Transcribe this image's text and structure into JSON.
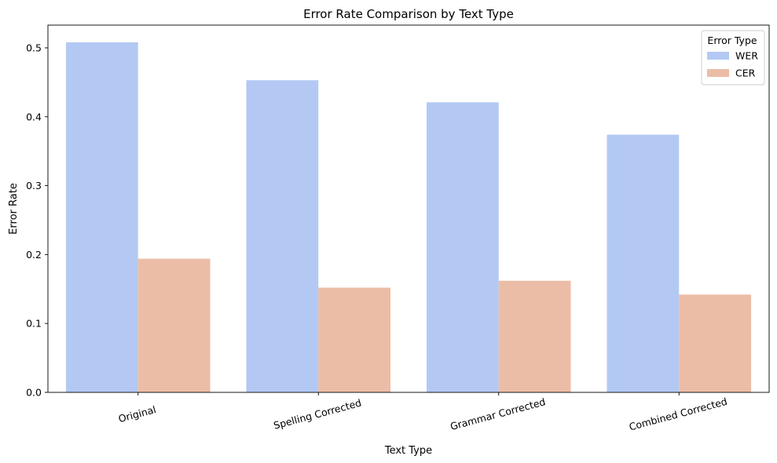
{
  "chart_data": {
    "type": "bar",
    "title": "Error Rate Comparison by Text Type",
    "xlabel": "Text Type",
    "ylabel": "Error Rate",
    "categories": [
      "Original",
      "Spelling Corrected",
      "Grammar Corrected",
      "Combined Corrected"
    ],
    "series": [
      {
        "name": "WER",
        "color": "#b3c9f4",
        "values": [
          0.508,
          0.453,
          0.421,
          0.374
        ]
      },
      {
        "name": "CER",
        "color": "#ecbda6",
        "values": [
          0.194,
          0.152,
          0.162,
          0.142
        ]
      }
    ],
    "ylim": [
      0,
      0.533
    ],
    "yticks": [
      0.0,
      0.1,
      0.2,
      0.3,
      0.4,
      0.5
    ],
    "ytick_labels": [
      "0.0",
      "0.1",
      "0.2",
      "0.3",
      "0.4",
      "0.5"
    ],
    "grid": false,
    "legend": {
      "title": "Error Type",
      "placement": "top-right"
    },
    "xtick_rotation_deg": -15
  }
}
